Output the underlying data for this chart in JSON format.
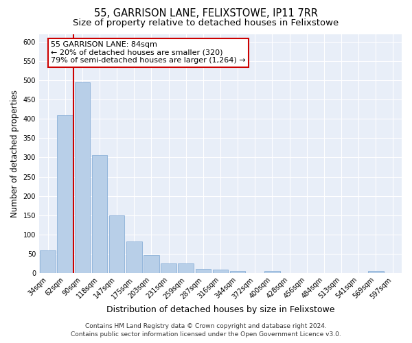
{
  "title": "55, GARRISON LANE, FELIXSTOWE, IP11 7RR",
  "subtitle": "Size of property relative to detached houses in Felixstowe",
  "xlabel": "Distribution of detached houses by size in Felixstowe",
  "ylabel": "Number of detached properties",
  "categories": [
    "34sqm",
    "62sqm",
    "90sqm",
    "118sqm",
    "147sqm",
    "175sqm",
    "203sqm",
    "231sqm",
    "259sqm",
    "287sqm",
    "316sqm",
    "344sqm",
    "372sqm",
    "400sqm",
    "428sqm",
    "456sqm",
    "484sqm",
    "513sqm",
    "541sqm",
    "569sqm",
    "597sqm"
  ],
  "values": [
    58,
    410,
    495,
    307,
    150,
    82,
    46,
    25,
    25,
    10,
    8,
    5,
    0,
    5,
    0,
    0,
    0,
    0,
    0,
    5,
    0
  ],
  "bar_color": "#b8cfe8",
  "bar_edgecolor": "#8ab0d8",
  "vline_x": 1.5,
  "vline_color": "#cc0000",
  "annotation_text": "55 GARRISON LANE: 84sqm\n← 20% of detached houses are smaller (320)\n79% of semi-detached houses are larger (1,264) →",
  "annotation_box_facecolor": "#ffffff",
  "annotation_box_edgecolor": "#cc0000",
  "ylim": [
    0,
    620
  ],
  "yticks": [
    0,
    50,
    100,
    150,
    200,
    250,
    300,
    350,
    400,
    450,
    500,
    550,
    600
  ],
  "footer_line1": "Contains HM Land Registry data © Crown copyright and database right 2024.",
  "footer_line2": "Contains public sector information licensed under the Open Government Licence v3.0.",
  "plot_bg_color": "#e8eef8",
  "grid_color": "#ffffff",
  "title_fontsize": 10.5,
  "subtitle_fontsize": 9.5,
  "tick_fontsize": 7,
  "ylabel_fontsize": 8.5,
  "xlabel_fontsize": 9,
  "footer_fontsize": 6.5,
  "annotation_fontsize": 8
}
